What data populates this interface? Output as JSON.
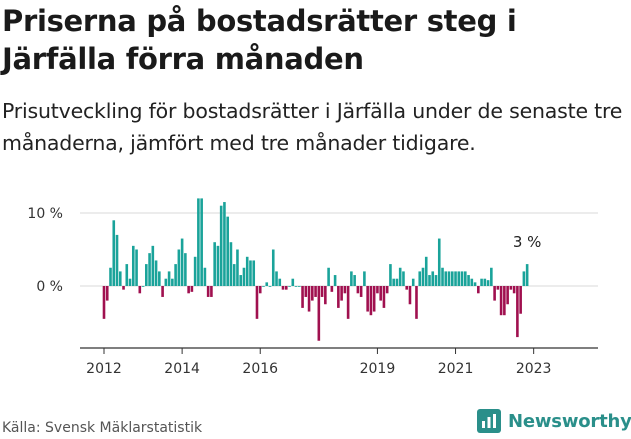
{
  "header": {
    "title": "Priserna på bostadsrätter steg i Järfälla förra månaden",
    "subtitle": "Prisutveckling för bostadsrätter i Järfälla under de senaste tre månaderna, jämfört med tre månader tidigare."
  },
  "footer": {
    "source": "Källa: Svensk Mäklarstatistik",
    "brand": "Newsworthy"
  },
  "colors": {
    "positive": "#1aa39a",
    "negative": "#a0104f",
    "axis": "#333333",
    "brand": "#2a8f8a"
  },
  "chart_data": {
    "type": "bar",
    "title": "Priserna på bostadsrätter steg i Järfälla förra månaden",
    "xlabel": "",
    "ylabel": "",
    "ylim": [
      -9,
      13
    ],
    "grid": false,
    "y_ticks": [
      {
        "value": 0,
        "label": "0 %"
      },
      {
        "value": 10,
        "label": "10 %"
      }
    ],
    "x_ticks": [
      {
        "label": "2012",
        "date": "2012-01"
      },
      {
        "label": "2014",
        "date": "2014-01"
      },
      {
        "label": "2016",
        "date": "2016-01"
      },
      {
        "label": "2019",
        "date": "2019-01"
      },
      {
        "label": "2021",
        "date": "2021-01"
      },
      {
        "label": "2023",
        "date": "2023-01"
      }
    ],
    "start": "2012-01",
    "end_label": {
      "text": "3 %",
      "value": 3
    },
    "values": [
      -4.5,
      -2,
      2.5,
      9,
      7,
      2,
      -0.5,
      3,
      1,
      5.5,
      5,
      -1,
      0,
      3,
      4.5,
      5.5,
      3.5,
      2,
      -1.5,
      1,
      2,
      1,
      3,
      5,
      6.5,
      4.5,
      -1,
      -0.8,
      4,
      12,
      12,
      2.5,
      -1.5,
      -1.5,
      6,
      5.5,
      11,
      11.5,
      9.5,
      6,
      3,
      5,
      1.5,
      2.5,
      4,
      3.5,
      3.5,
      -4.5,
      -1,
      0,
      0.5,
      0,
      5,
      2,
      1,
      -0.5,
      -0.5,
      0,
      1,
      0,
      0,
      -3,
      -1.5,
      -3.5,
      -2,
      -1.5,
      -7.5,
      -1.5,
      -2.5,
      2.5,
      -0.8,
      1.5,
      -3,
      -2,
      -1,
      -4.5,
      2,
      1.5,
      -1,
      -1.5,
      2,
      -3.5,
      -4,
      -3.5,
      -1,
      -2,
      -3,
      -1,
      3,
      1,
      1,
      2.5,
      2,
      -0.5,
      -2.5,
      1,
      -4.5,
      2,
      2.5,
      4,
      1.5,
      2,
      1.5,
      6.5,
      2.5,
      2,
      2,
      2,
      2,
      2,
      2,
      2,
      1.5,
      1,
      0.5,
      -1,
      1,
      1,
      0.8,
      2.5,
      -2,
      -0.5,
      -4,
      -4,
      -2.5,
      -0.5,
      -1,
      -7,
      -3.8,
      2,
      3
    ]
  }
}
